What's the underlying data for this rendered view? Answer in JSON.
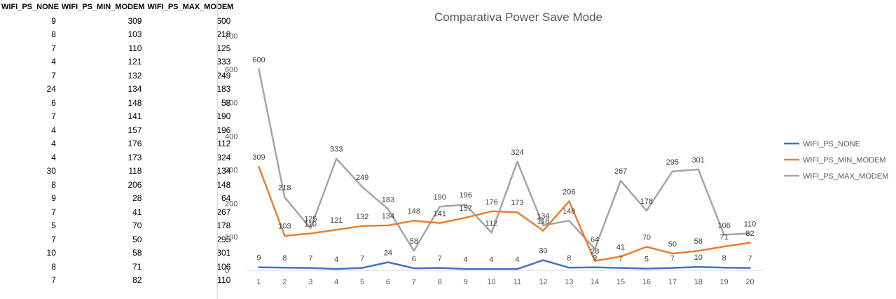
{
  "sheet": {
    "headers": [
      "WIFI_PS_NONE",
      "WIFI_PS_MIN_MODEM",
      "WIFI_PS_MAX_MODEM"
    ],
    "rows": [
      [
        9,
        309,
        600
      ],
      [
        8,
        103,
        218
      ],
      [
        7,
        110,
        125
      ],
      [
        4,
        121,
        333
      ],
      [
        7,
        132,
        249
      ],
      [
        24,
        134,
        183
      ],
      [
        6,
        148,
        58
      ],
      [
        7,
        141,
        190
      ],
      [
        4,
        157,
        196
      ],
      [
        4,
        176,
        112
      ],
      [
        4,
        173,
        324
      ],
      [
        30,
        118,
        134
      ],
      [
        8,
        206,
        148
      ],
      [
        9,
        28,
        64
      ],
      [
        7,
        41,
        267
      ],
      [
        5,
        70,
        178
      ],
      [
        7,
        50,
        295
      ],
      [
        10,
        58,
        301
      ],
      [
        8,
        71,
        106
      ],
      [
        7,
        82,
        110
      ]
    ]
  },
  "chart_data": {
    "type": "line",
    "title": "Comparativa Power Save Mode",
    "xlabel": "",
    "ylabel": "",
    "x": [
      1,
      2,
      3,
      4,
      5,
      6,
      7,
      8,
      9,
      10,
      11,
      12,
      13,
      14,
      15,
      16,
      17,
      18,
      19,
      20
    ],
    "ylim": [
      0,
      700
    ],
    "yticks": [
      0,
      100,
      200,
      300,
      400,
      500,
      600,
      700
    ],
    "grid": false,
    "legend": "right",
    "series": [
      {
        "name": "WIFI_PS_NONE",
        "color": "#4472C4",
        "values": [
          9,
          8,
          7,
          4,
          7,
          24,
          6,
          7,
          4,
          4,
          4,
          30,
          8,
          9,
          7,
          5,
          7,
          10,
          8,
          7
        ]
      },
      {
        "name": "WIFI_PS_MIN_MODEM",
        "color": "#ED7D31",
        "values": [
          309,
          103,
          110,
          121,
          132,
          134,
          148,
          141,
          157,
          176,
          173,
          118,
          206,
          28,
          41,
          70,
          50,
          58,
          71,
          82
        ]
      },
      {
        "name": "WIFI_PS_MAX_MODEM",
        "color": "#A5A5A5",
        "values": [
          600,
          218,
          125,
          333,
          249,
          183,
          58,
          190,
          196,
          112,
          324,
          134,
          148,
          64,
          267,
          178,
          295,
          301,
          106,
          110
        ]
      }
    ]
  }
}
